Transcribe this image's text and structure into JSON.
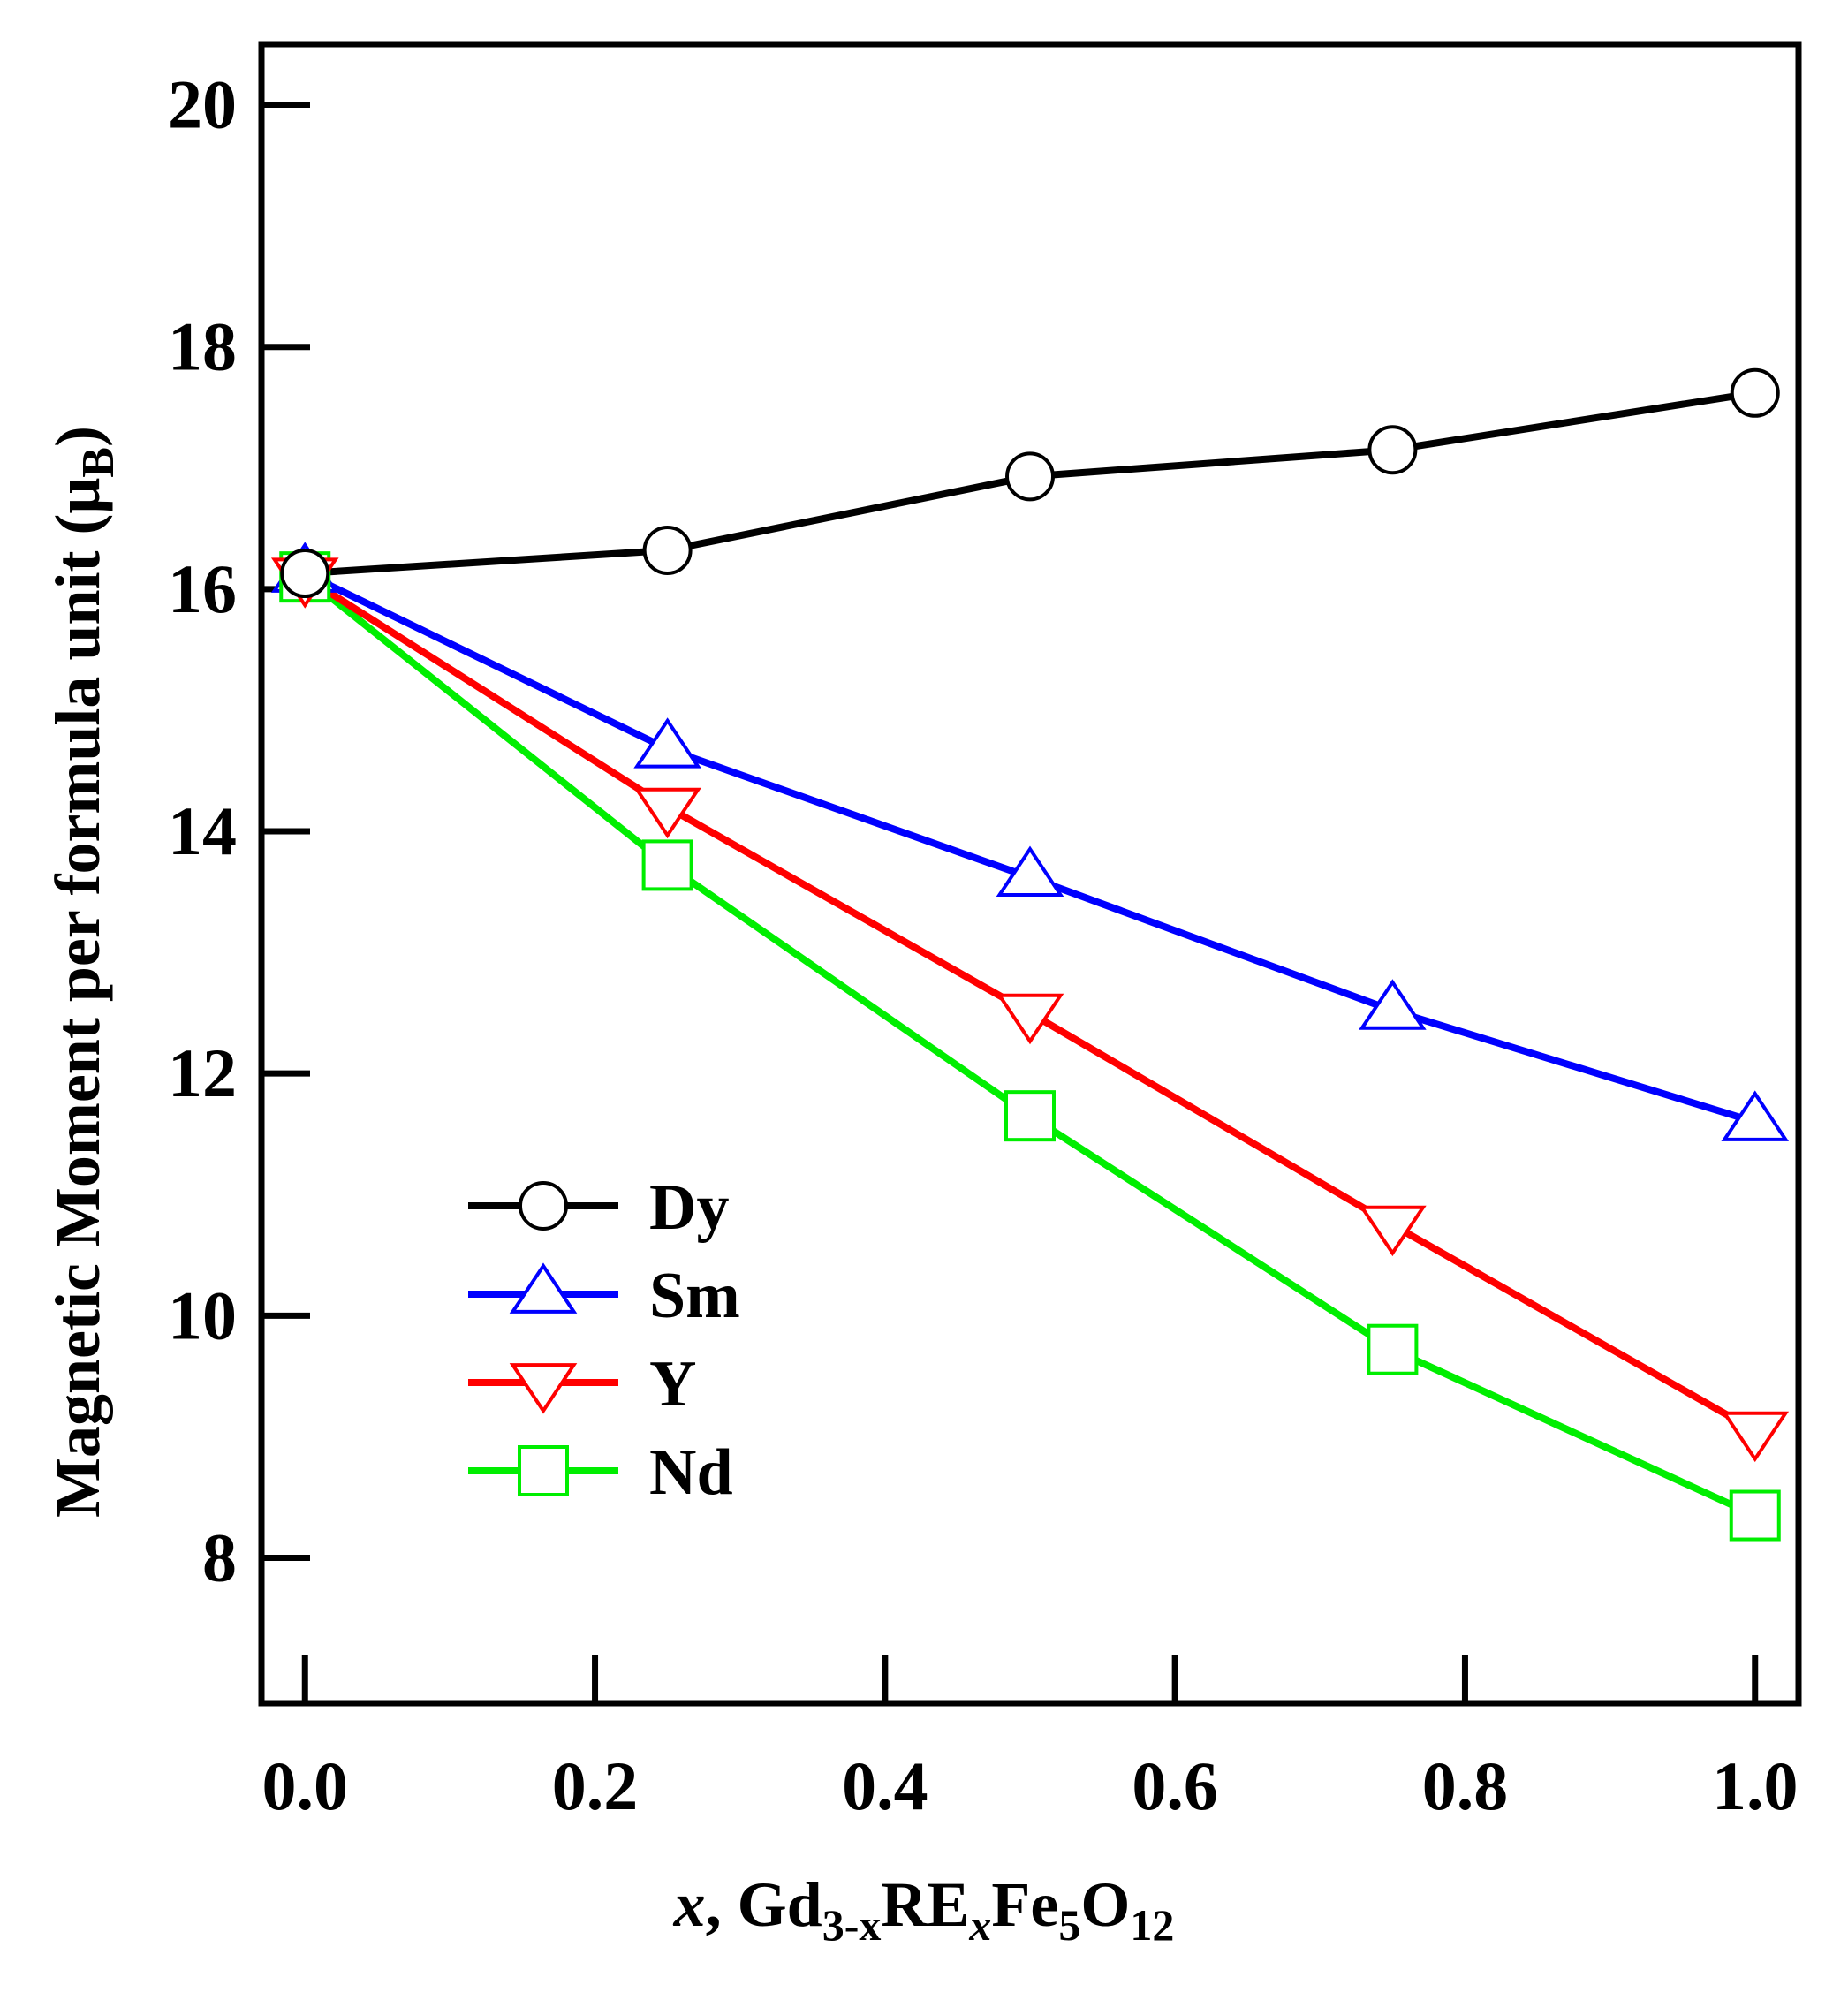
{
  "chart_data": {
    "type": "line",
    "title": "",
    "xlabel": {
      "prefix": "x",
      "mid": ", Gd",
      "sub1": "3-x",
      "re": "RE",
      "sub2": "x",
      "fe": "Fe",
      "sub3": "5",
      "o": "O",
      "sub4": "12"
    },
    "ylabel": {
      "main": "Magnetic Moment per formula unit (",
      "mu": "μ",
      "sub": "B",
      "close": ")"
    },
    "x": [
      0.0,
      0.25,
      0.5,
      0.75,
      1.0
    ],
    "xlim": [
      -0.03,
      1.03
    ],
    "ylim": [
      6.8,
      20.5
    ],
    "xticks": [
      {
        "value": 0.0,
        "label": "0.0"
      },
      {
        "value": 0.2,
        "label": "0.2"
      },
      {
        "value": 0.4,
        "label": "0.4"
      },
      {
        "value": 0.6,
        "label": "0.6"
      },
      {
        "value": 0.8,
        "label": "0.8"
      },
      {
        "value": 1.0,
        "label": "1.0"
      }
    ],
    "yticks": [
      {
        "value": 8,
        "label": "8"
      },
      {
        "value": 10,
        "label": "10"
      },
      {
        "value": 12,
        "label": "12"
      },
      {
        "value": 14,
        "label": "14"
      },
      {
        "value": 16,
        "label": "16"
      },
      {
        "value": 18,
        "label": "18"
      },
      {
        "value": 20,
        "label": "20"
      }
    ],
    "legend_position": "lower-left",
    "series": [
      {
        "name": "Dy",
        "color": "#000000",
        "marker": "circle",
        "values": [
          16.13,
          16.32,
          16.93,
          17.15,
          17.62
        ]
      },
      {
        "name": "Sm",
        "color": "#0000ff",
        "marker": "triangle-up",
        "values": [
          16.13,
          14.68,
          13.62,
          12.52,
          11.6
        ]
      },
      {
        "name": "Y",
        "color": "#ff0000",
        "marker": "triangle-down",
        "values": [
          16.1,
          14.2,
          12.5,
          10.75,
          9.05
        ]
      },
      {
        "name": "Nd",
        "color": "#00ee00",
        "marker": "square",
        "values": [
          16.1,
          13.72,
          11.65,
          9.72,
          8.35
        ]
      }
    ]
  }
}
